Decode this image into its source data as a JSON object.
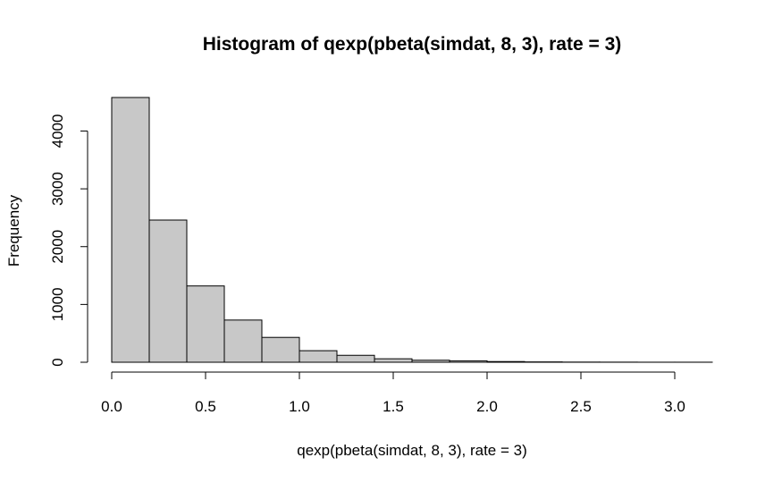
{
  "chart_data": {
    "type": "bar",
    "subtype": "histogram",
    "title": "Histogram of qexp(pbeta(simdat, 8, 3), rate = 3)",
    "xlabel": "qexp(pbeta(simdat, 8, 3), rate = 3)",
    "ylabel": "Frequency",
    "bin_edges": [
      0.0,
      0.2,
      0.4,
      0.6,
      0.8,
      1.0,
      1.2,
      1.4,
      1.6,
      1.8,
      2.0,
      2.2,
      2.4,
      2.6,
      2.8,
      3.0,
      3.2
    ],
    "values": [
      4580,
      2460,
      1320,
      730,
      430,
      200,
      120,
      60,
      35,
      25,
      12,
      6,
      3,
      2,
      1,
      1
    ],
    "xlim": [
      0.0,
      3.2
    ],
    "ylim": [
      0,
      4580
    ],
    "x_ticks": [
      {
        "value": 0.0,
        "label": "0.0"
      },
      {
        "value": 0.5,
        "label": "0.5"
      },
      {
        "value": 1.0,
        "label": "1.0"
      },
      {
        "value": 1.5,
        "label": "1.5"
      },
      {
        "value": 2.0,
        "label": "2.0"
      },
      {
        "value": 2.5,
        "label": "2.5"
      },
      {
        "value": 3.0,
        "label": "3.0"
      }
    ],
    "y_ticks": [
      {
        "value": 0,
        "label": "0"
      },
      {
        "value": 1000,
        "label": "1000"
      },
      {
        "value": 2000,
        "label": "2000"
      },
      {
        "value": 3000,
        "label": "3000"
      },
      {
        "value": 4000,
        "label": "4000"
      }
    ],
    "bar_color": "#c8c8c8",
    "grid": false,
    "legend": "none"
  }
}
